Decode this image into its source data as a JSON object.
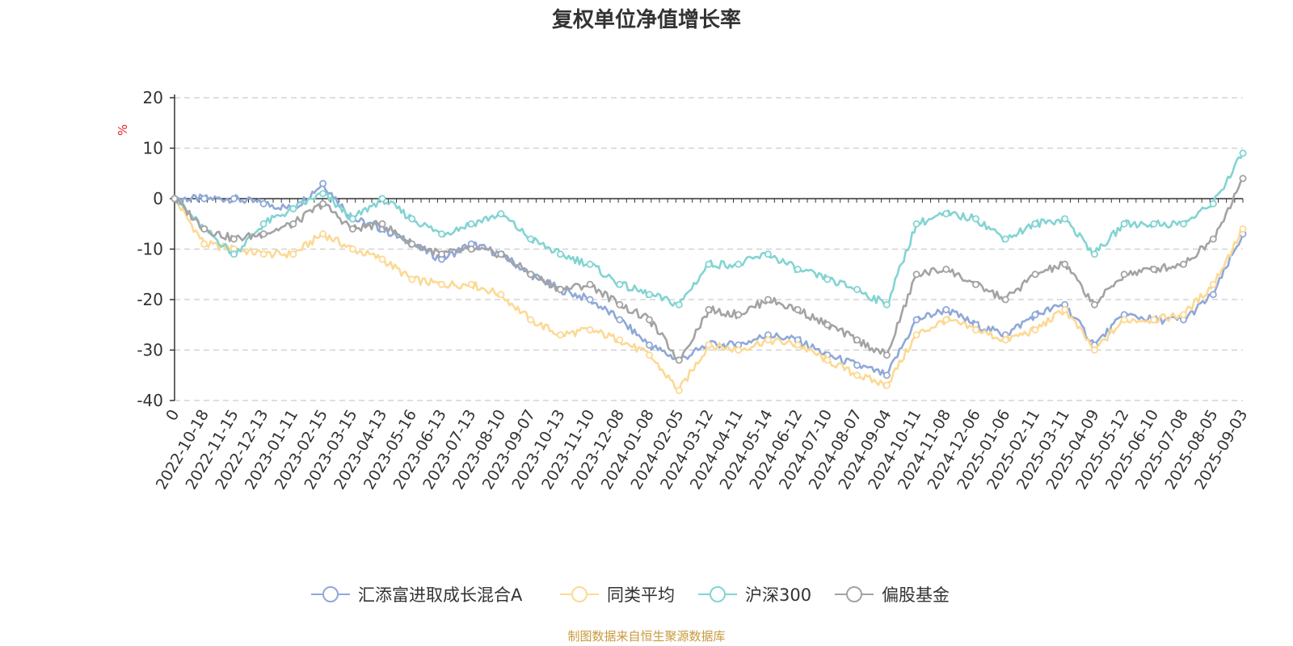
{
  "chart_data": {
    "type": "line",
    "title": "复权单位净值增长率",
    "ylabel": "%",
    "ylim": [
      -40,
      20
    ],
    "yticks": [
      20,
      10,
      0,
      -10,
      -20,
      -30,
      -40
    ],
    "grid": true,
    "legend_position": "bottom",
    "x": [
      "0",
      "2022-10-18",
      "2022-11-15",
      "2022-12-13",
      "2023-01-11",
      "2023-02-15",
      "2023-03-15",
      "2023-04-13",
      "2023-05-16",
      "2023-06-13",
      "2023-07-13",
      "2023-08-10",
      "2023-09-07",
      "2023-10-13",
      "2023-11-10",
      "2023-12-08",
      "2024-01-08",
      "2024-02-05",
      "2024-03-12",
      "2024-04-11",
      "2024-05-14",
      "2024-06-12",
      "2024-07-10",
      "2024-08-07",
      "2024-09-04",
      "2024-10-11",
      "2024-11-08",
      "2024-12-06",
      "2025-01-06",
      "2025-02-11",
      "2025-03-11",
      "2025-04-09",
      "2025-05-12",
      "2025-06-10",
      "2025-07-08",
      "2025-08-05",
      "2025-09-03"
    ],
    "series": [
      {
        "name": "汇添富进取成长混合A",
        "color": "#8fa8d8",
        "values": [
          0,
          0,
          0,
          -1,
          -2,
          3,
          -4,
          -6,
          -9,
          -12,
          -9,
          -11,
          -15,
          -18,
          -20,
          -24,
          -29,
          -32,
          -29,
          -29,
          -27,
          -28,
          -31,
          -33,
          -35,
          -24,
          -22,
          -25,
          -27,
          -23,
          -21,
          -29,
          -23,
          -24,
          -24,
          -19,
          -7
        ]
      },
      {
        "name": "同类平均",
        "color": "#fcd993",
        "values": [
          0,
          -9,
          -10,
          -11,
          -11,
          -7,
          -10,
          -12,
          -16,
          -17,
          -17,
          -19,
          -24,
          -27,
          -26,
          -28,
          -31,
          -38,
          -29,
          -30,
          -28,
          -29,
          -32,
          -35,
          -37,
          -27,
          -24,
          -26,
          -28,
          -26,
          -22,
          -30,
          -24,
          -24,
          -23,
          -17,
          -6
        ]
      },
      {
        "name": "沪深300",
        "color": "#82d4d2",
        "values": [
          0,
          -6,
          -11,
          -5,
          -2,
          1,
          -4,
          0,
          -4,
          -7,
          -5,
          -3,
          -8,
          -11,
          -13,
          -17,
          -19,
          -21,
          -13,
          -13,
          -11,
          -14,
          -16,
          -18,
          -21,
          -5,
          -3,
          -4,
          -8,
          -5,
          -4,
          -11,
          -5,
          -5,
          -5,
          -1,
          9
        ]
      },
      {
        "name": "偏股基金",
        "color": "#a3a3a3",
        "values": [
          0,
          -6,
          -8,
          -7,
          -5,
          -1,
          -6,
          -5,
          -9,
          -11,
          -10,
          -11,
          -15,
          -18,
          -17,
          -21,
          -24,
          -32,
          -22,
          -23,
          -20,
          -22,
          -25,
          -28,
          -31,
          -15,
          -14,
          -17,
          -20,
          -15,
          -13,
          -21,
          -15,
          -14,
          -13,
          -8,
          4
        ]
      }
    ]
  },
  "source_note": "制图数据来自恒生聚源数据库"
}
